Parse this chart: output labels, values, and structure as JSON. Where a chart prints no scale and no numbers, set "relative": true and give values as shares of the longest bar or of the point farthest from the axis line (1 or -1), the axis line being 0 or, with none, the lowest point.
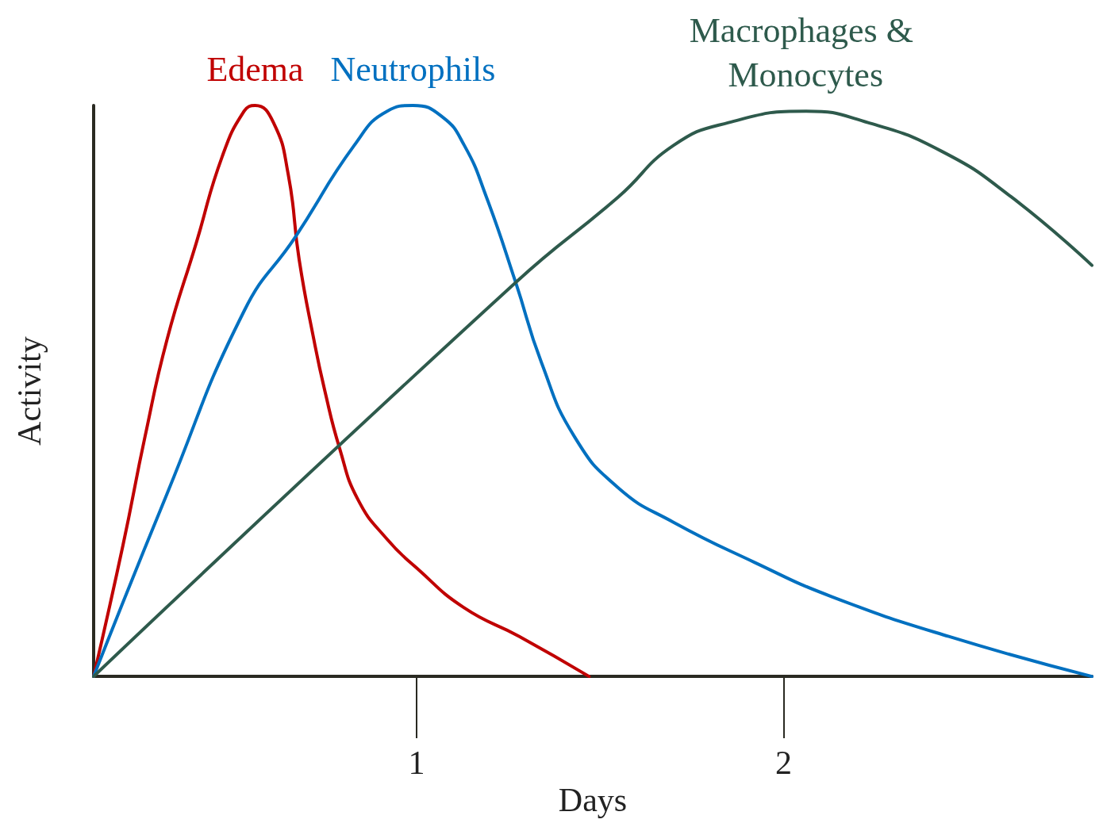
{
  "chart_data": {
    "type": "line",
    "relative": true,
    "xlabel": "Days",
    "ylabel": "Activity",
    "xlim": [
      0.12,
      2.84
    ],
    "xticks": [
      1,
      2
    ],
    "marker": "none",
    "series": [
      {
        "name": "Edema",
        "color": "#c00000",
        "x": [
          0.12,
          0.2,
          0.26,
          0.32,
          0.4,
          0.47,
          0.53,
          0.56,
          0.61,
          0.65,
          0.68,
          0.72,
          0.75,
          0.79,
          0.84,
          0.92,
          1.0,
          1.13,
          1.28,
          1.47
        ],
        "values": [
          0,
          0.23,
          0.42,
          0.59,
          0.76,
          0.91,
          0.99,
          1.0,
          0.97,
          0.88,
          0.73,
          0.59,
          0.5,
          0.4,
          0.31,
          0.24,
          0.19,
          0.12,
          0.07,
          0
        ]
      },
      {
        "name": "Neutrophils",
        "color": "#0070c0",
        "x": [
          0.12,
          0.32,
          0.53,
          0.67,
          0.83,
          0.92,
          0.99,
          1.07,
          1.13,
          1.19,
          1.27,
          1.34,
          1.43,
          1.55,
          1.7,
          1.92,
          2.13,
          2.45,
          2.84
        ],
        "values": [
          0,
          0.32,
          0.64,
          0.77,
          0.93,
          0.99,
          1.0,
          0.98,
          0.93,
          0.84,
          0.69,
          0.55,
          0.42,
          0.33,
          0.27,
          0.2,
          0.14,
          0.07,
          0
        ]
      },
      {
        "name": "Macrophages & Monocytes",
        "color": "#2e5a4c",
        "x": [
          0.12,
          1.27,
          1.55,
          1.7,
          1.85,
          2.06,
          2.23,
          2.43,
          2.62,
          2.84
        ],
        "values": [
          0,
          0.69,
          0.84,
          0.93,
          0.97,
          0.99,
          0.97,
          0.92,
          0.84,
          0.72
        ]
      }
    ]
  }
}
